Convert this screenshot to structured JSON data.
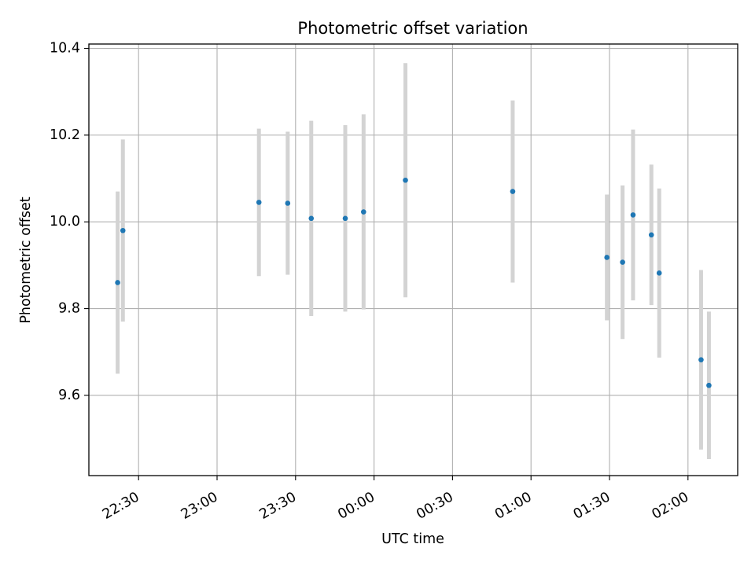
{
  "chart_data": {
    "type": "scatter",
    "title": "Photometric offset variation",
    "xlabel": "UTC time",
    "ylabel": "Photometric offset",
    "grid": true,
    "x_ticks": [
      "22:30",
      "23:00",
      "23:30",
      "00:00",
      "00:30",
      "01:00",
      "01:30",
      "02:00"
    ],
    "y_ticks": [
      "9.6",
      "9.8",
      "10.0",
      "10.2",
      "10.4"
    ],
    "xlim": [
      "22:11",
      "02:19"
    ],
    "ylim": [
      9.415,
      10.41
    ],
    "colors": {
      "points": "#1f77b4",
      "errorbars": "#d3d3d3",
      "grid": "#b0b0b0"
    },
    "series": [
      {
        "points": [
          {
            "x": "22:22",
            "y": 9.86,
            "yerr": 0.21
          },
          {
            "x": "22:24",
            "y": 9.98,
            "yerr": 0.21
          },
          {
            "x": "23:16",
            "y": 10.045,
            "yerr": 0.17
          },
          {
            "x": "23:27",
            "y": 10.043,
            "yerr": 0.165
          },
          {
            "x": "23:36",
            "y": 10.008,
            "yerr": 0.225
          },
          {
            "x": "23:49",
            "y": 10.008,
            "yerr": 0.215
          },
          {
            "x": "23:56",
            "y": 10.023,
            "yerr": 0.225
          },
          {
            "x": "00:12",
            "y": 10.096,
            "yerr": 0.27
          },
          {
            "x": "00:53",
            "y": 10.07,
            "yerr": 0.21
          },
          {
            "x": "01:29",
            "y": 9.918,
            "yerr": 0.145
          },
          {
            "x": "01:35",
            "y": 9.907,
            "yerr": 0.177
          },
          {
            "x": "01:39",
            "y": 10.016,
            "yerr": 0.197
          },
          {
            "x": "01:46",
            "y": 9.97,
            "yerr": 0.162
          },
          {
            "x": "01:49",
            "y": 9.882,
            "yerr": 0.195
          },
          {
            "x": "02:05",
            "y": 9.682,
            "yerr": 0.207
          },
          {
            "x": "02:08",
            "y": 9.623,
            "yerr": 0.17
          }
        ]
      }
    ]
  }
}
